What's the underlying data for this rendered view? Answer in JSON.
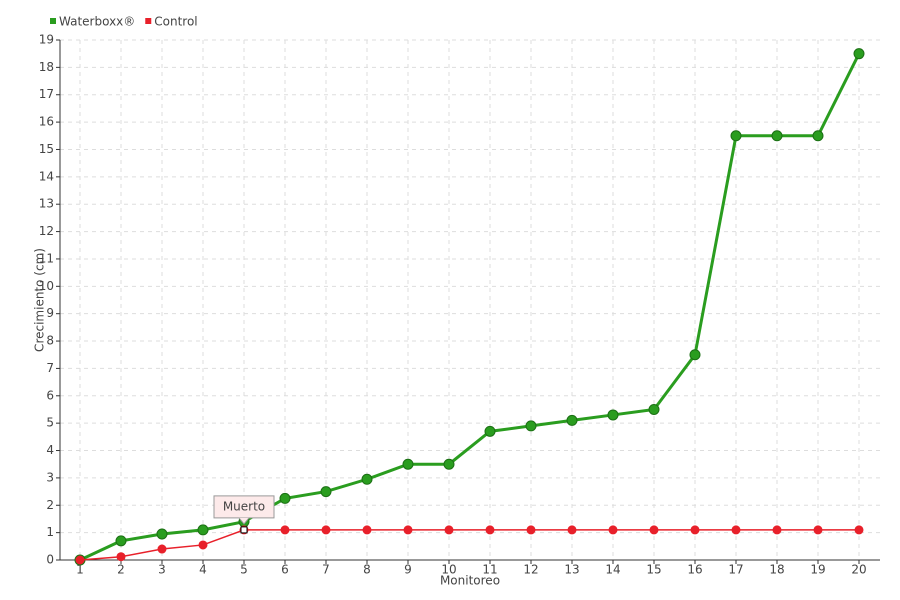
{
  "chart_data": {
    "type": "line",
    "categories": [
      "1",
      "2",
      "3",
      "4",
      "5",
      "6",
      "7",
      "8",
      "9",
      "10",
      "11",
      "12",
      "13",
      "14",
      "15",
      "16",
      "17",
      "18",
      "19",
      "20"
    ],
    "series": [
      {
        "name": "Waterboxx®",
        "color": "#2a9d1f",
        "values": [
          0,
          0.7,
          0.95,
          1.1,
          1.4,
          2.25,
          2.5,
          2.95,
          3.5,
          3.5,
          4.7,
          4.9,
          5.1,
          5.3,
          5.5,
          7.5,
          15.5,
          15.5,
          15.5,
          18.5
        ]
      },
      {
        "name": "Control",
        "color": "#e8202a",
        "values": [
          0,
          0.12,
          0.4,
          0.55,
          1.1,
          1.1,
          1.1,
          1.1,
          1.1,
          1.1,
          1.1,
          1.1,
          1.1,
          1.1,
          1.1,
          1.1,
          1.1,
          1.1,
          1.1,
          1.1
        ]
      }
    ],
    "ylabel": "Crecimiento (cm)",
    "xlabel": "Monitoreo",
    "annotation": "Muerto",
    "ylim": [
      0,
      19
    ],
    "yticks": [
      0,
      1,
      2,
      3,
      4,
      5,
      6,
      7,
      8,
      9,
      10,
      11,
      12,
      13,
      14,
      15,
      16,
      17,
      18,
      19
    ],
    "grid": true,
    "legend": "top-left"
  }
}
